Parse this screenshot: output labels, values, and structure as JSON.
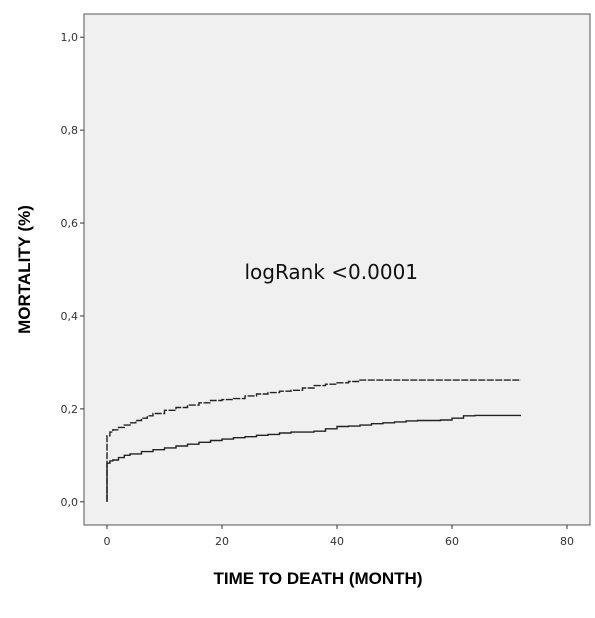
{
  "chart_data": {
    "type": "line",
    "title": "",
    "xlabel": "TIME TO DEATH (MONTH)",
    "ylabel": "MORTALITY (%)",
    "xlim": [
      -4,
      84
    ],
    "ylim": [
      -0.05,
      1.05
    ],
    "x_ticks": [
      0,
      20,
      40,
      60,
      80
    ],
    "x_tick_labels": [
      "0",
      "20",
      "40",
      "60",
      "80"
    ],
    "y_ticks": [
      0.0,
      0.2,
      0.4,
      0.6,
      0.8,
      1.0
    ],
    "y_tick_labels": [
      "0,0",
      "0,2",
      "0,4",
      "0,6",
      "0,8",
      "1,0"
    ],
    "grid": false,
    "plot_background": "#f0f0f0",
    "annotations": [
      {
        "text": "logRank <0.0001",
        "x": 39,
        "y": 0.48
      }
    ],
    "series": [
      {
        "style": "dashed",
        "color": "#222222",
        "x": [
          0,
          0,
          0.5,
          1,
          2,
          3,
          4,
          5,
          6,
          7,
          8,
          10,
          12,
          14,
          16,
          18,
          20,
          22,
          24,
          26,
          28,
          30,
          32,
          34,
          36,
          38,
          40,
          42,
          44,
          48,
          52,
          56,
          60,
          64,
          68,
          72
        ],
        "y": [
          0.0,
          0.142,
          0.15,
          0.155,
          0.16,
          0.165,
          0.17,
          0.175,
          0.18,
          0.185,
          0.19,
          0.197,
          0.203,
          0.208,
          0.213,
          0.218,
          0.22,
          0.222,
          0.228,
          0.232,
          0.235,
          0.238,
          0.24,
          0.245,
          0.25,
          0.253,
          0.256,
          0.259,
          0.262,
          0.262,
          0.262,
          0.262,
          0.262,
          0.262,
          0.262,
          0.262
        ]
      },
      {
        "style": "solid",
        "color": "#222222",
        "x": [
          0,
          0,
          0.5,
          1,
          2,
          3,
          4,
          6,
          8,
          10,
          12,
          14,
          16,
          18,
          20,
          22,
          24,
          26,
          28,
          30,
          32,
          36,
          38,
          40,
          42,
          44,
          46,
          48,
          50,
          52,
          54,
          56,
          58,
          60,
          62,
          64,
          68,
          72
        ],
        "y": [
          0.0,
          0.083,
          0.088,
          0.09,
          0.095,
          0.1,
          0.103,
          0.108,
          0.112,
          0.116,
          0.12,
          0.124,
          0.128,
          0.132,
          0.135,
          0.138,
          0.14,
          0.143,
          0.145,
          0.148,
          0.15,
          0.152,
          0.157,
          0.162,
          0.163,
          0.165,
          0.168,
          0.17,
          0.172,
          0.174,
          0.175,
          0.175,
          0.176,
          0.18,
          0.185,
          0.186,
          0.186,
          0.186
        ]
      }
    ]
  }
}
